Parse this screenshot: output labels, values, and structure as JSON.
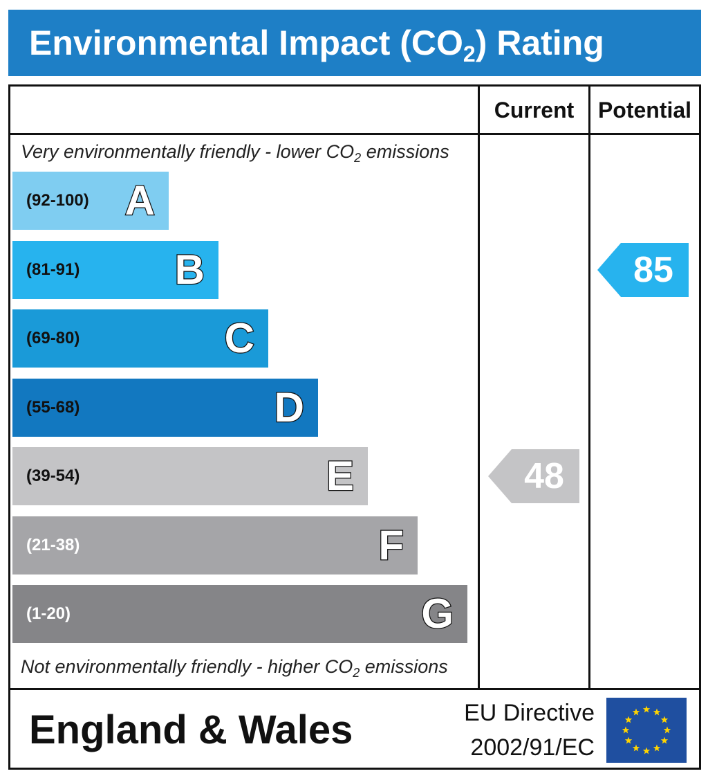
{
  "title": {
    "main": "Environmental Impact (CO",
    "sub": "2",
    "tail": ") Rating"
  },
  "columns": {
    "current": "Current",
    "potential": "Potential"
  },
  "captions": {
    "top": {
      "before": "Very environmentally friendly - lower CO",
      "sub": "2",
      "after": " emissions"
    },
    "bottom": {
      "before": "Not environmentally friendly - higher CO",
      "sub": "2",
      "after": " emissions"
    }
  },
  "chart_data": {
    "type": "bar",
    "bands": [
      {
        "letter": "A",
        "range": "(92-100)",
        "min": 92,
        "max": 100,
        "color": "#7fcdf1",
        "text_color": "#111111"
      },
      {
        "letter": "B",
        "range": "(81-91)",
        "min": 81,
        "max": 91,
        "color": "#27b3ee",
        "text_color": "#111111"
      },
      {
        "letter": "C",
        "range": "(69-80)",
        "min": 69,
        "max": 80,
        "color": "#1a9ad8",
        "text_color": "#111111"
      },
      {
        "letter": "D",
        "range": "(55-68)",
        "min": 55,
        "max": 68,
        "color": "#1278c0",
        "text_color": "#111111"
      },
      {
        "letter": "E",
        "range": "(39-54)",
        "min": 39,
        "max": 54,
        "color": "#c4c4c6",
        "text_color": "#111111"
      },
      {
        "letter": "F",
        "range": "(21-38)",
        "min": 21,
        "max": 38,
        "color": "#a5a5a8",
        "text_color": "#ffffff"
      },
      {
        "letter": "G",
        "range": "(1-20)",
        "min": 1,
        "max": 20,
        "color": "#858588",
        "text_color": "#ffffff"
      }
    ],
    "ratings": {
      "current": {
        "value": 48,
        "band": "E",
        "color": "#c4c4c6"
      },
      "potential": {
        "value": 85,
        "band": "B",
        "color": "#27b3ee"
      }
    }
  },
  "footer": {
    "region": "England & Wales",
    "directive_line1": "EU Directive",
    "directive_line2": "2002/91/EC",
    "flag_color": "#1f4fa0",
    "star_color": "#ffd400"
  }
}
